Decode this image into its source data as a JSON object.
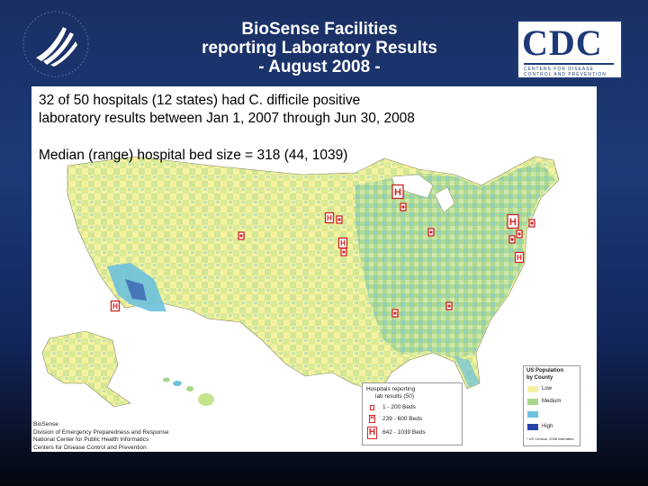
{
  "header": {
    "title_lines": [
      "BioSense Facilities",
      "reporting Laboratory Results",
      "- August 2008 -"
    ],
    "cdc_logo_text": "CDC",
    "cdc_logo_subtitle": "CENTERS FOR DISEASE CONTROL AND PREVENTION"
  },
  "body": {
    "headline_line1": "32 of 50 hospitals (12 states) had C. difficile positive",
    "headline_line2": "laboratory results between Jan 1, 2007 through Jun 30, 2008",
    "median_text": "Median (range) hospital bed size = 318 (44, 1039)"
  },
  "map": {
    "colors": {
      "low": "#f4f2a0",
      "medium": "#a8d78a",
      "medium_high": "#6cc1dc",
      "high": "#2742a8",
      "marker": "#d22222"
    },
    "hospital_legend": {
      "title": "Hospitals reporting",
      "subtitle": "lab results (50)",
      "rows": [
        {
          "label": "1 - 200 Beds",
          "marker": "small"
        },
        {
          "label": "239 - 600 Beds",
          "marker": "medium"
        },
        {
          "label": "642 - 1039 Beds",
          "marker": "large"
        }
      ]
    },
    "population_legend": {
      "title": "US Population",
      "subtitle": "by County",
      "rows": [
        {
          "label": "Low",
          "color": "#f4f2a0"
        },
        {
          "label": "Medium",
          "color": "#a8d78a"
        },
        {
          "label": "",
          "color": "#6cc1dc"
        },
        {
          "label": "High",
          "color": "#2742a8"
        }
      ],
      "source": "* US Census, 2008 estimates"
    },
    "credit_lines": [
      "BioSense",
      "Division of Emergency Preparedness and Response",
      "National Center for Public Health Informatics",
      "Centers for Disease Control and Prevention"
    ],
    "marker_letter": "H"
  }
}
